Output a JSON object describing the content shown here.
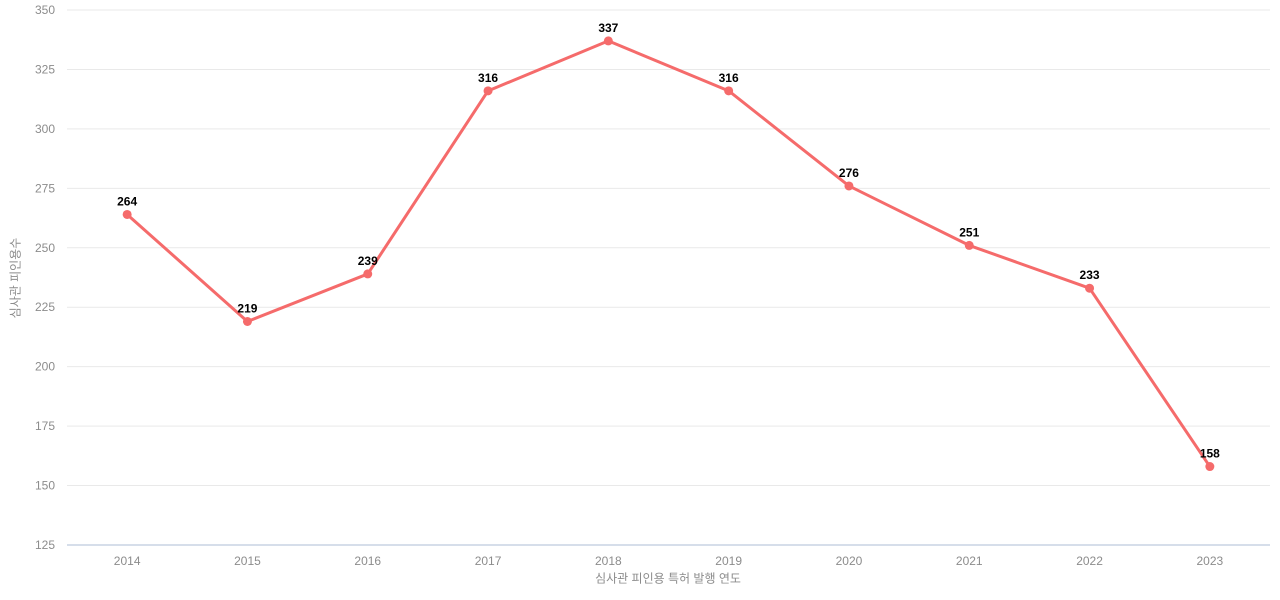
{
  "chart_data": {
    "type": "line",
    "title": "",
    "categories": [
      "2014",
      "2015",
      "2016",
      "2017",
      "2018",
      "2019",
      "2020",
      "2021",
      "2022",
      "2023"
    ],
    "values": [
      264,
      219,
      239,
      316,
      337,
      316,
      276,
      251,
      233,
      158
    ],
    "point_labels": [
      "264",
      "219",
      "239",
      "316",
      "337",
      "316",
      "276",
      "251",
      "233",
      "158"
    ],
    "xlabel": "심사관 피인용 특허 발행 연도",
    "ylabel": "심사관 피인용수",
    "ylim": [
      125,
      350
    ],
    "ytick_step": 25,
    "grid": true,
    "legend": "none",
    "style": {
      "line_color": "#f56b6b",
      "marker_color": "#f56b6b",
      "grid_color": "#e9e9e9",
      "axis_line_color": "#c8d4e3",
      "tick_label_color": "#8c8c8c",
      "value_label_color": "#000000",
      "background": "#ffffff"
    }
  }
}
